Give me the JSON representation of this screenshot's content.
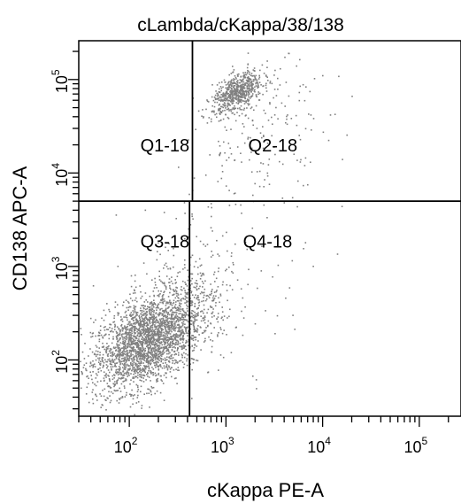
{
  "chart_data": {
    "type": "scatter",
    "title": "cLambda/cKappa/38/138",
    "xlabel": "cKappa PE-A",
    "ylabel": "CD138 APC-A",
    "xscale": "log",
    "yscale": "log",
    "xlim": [
      30,
      270000
    ],
    "ylim": [
      25,
      260000
    ],
    "x_ticks": [
      {
        "base": "10",
        "exp": "2",
        "value": 100
      },
      {
        "base": "10",
        "exp": "3",
        "value": 1000
      },
      {
        "base": "10",
        "exp": "4",
        "value": 10000
      },
      {
        "base": "10",
        "exp": "5",
        "value": 100000
      }
    ],
    "y_ticks": [
      {
        "base": "10",
        "exp": "2",
        "value": 100
      },
      {
        "base": "10",
        "exp": "3",
        "value": 1000
      },
      {
        "base": "10",
        "exp": "4",
        "value": 10000
      },
      {
        "base": "10",
        "exp": "5",
        "value": 100000
      }
    ],
    "grid": false,
    "legend": "none",
    "dot_color": "#808080",
    "gates": {
      "x_split_upper": 450,
      "x_split_lower": 420,
      "y_split": 5000
    },
    "quadrants": [
      {
        "label": "Q1-18",
        "x": 130,
        "y": 17000
      },
      {
        "label": "Q2-18",
        "x": 1700,
        "y": 17000
      },
      {
        "label": "Q3-18",
        "x": 130,
        "y": 1600
      },
      {
        "label": "Q4-18",
        "x": 1500,
        "y": 1600
      }
    ],
    "populations": [
      {
        "name": "",
        "count": 2600,
        "center_x": 150,
        "center_y": 160,
        "spread_x": 0.28,
        "spread_y": 0.26,
        "rho": 0.45,
        "tail_x": 0.0
      },
      {
        "name": "",
        "count": 650,
        "center_x": 1300,
        "center_y": 74000,
        "spread_x": 0.13,
        "spread_y": 0.11,
        "rho": 0.55,
        "tail_x": 0.0
      },
      {
        "name": "",
        "count": 260,
        "center_x": 380,
        "center_y": 450,
        "spread_x": 0.25,
        "spread_y": 0.3,
        "rho": 0.3,
        "tail_x": 0.0
      },
      {
        "name": "",
        "count": 180,
        "center_x": 2500,
        "center_y": 30000,
        "spread_x": 0.35,
        "spread_y": 0.35,
        "rho": 0.2,
        "tail_x": 0.0
      },
      {
        "name": "",
        "count": 120,
        "center_x": 900,
        "center_y": 900,
        "spread_x": 0.5,
        "spread_y": 0.5,
        "rho": 0.0,
        "tail_x": 0.0
      }
    ]
  }
}
